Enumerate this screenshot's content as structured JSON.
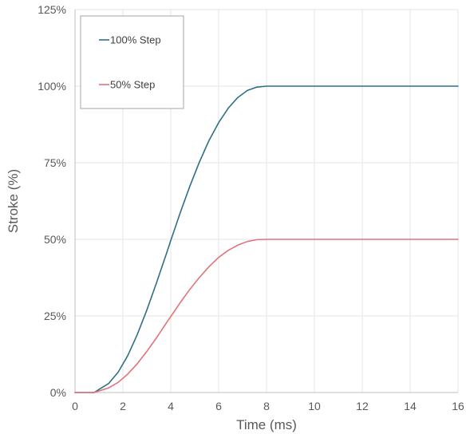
{
  "chart_data": {
    "type": "line",
    "title": "",
    "xlabel": "Time (ms)",
    "ylabel": "Stroke (%)",
    "xlim": [
      0,
      16
    ],
    "ylim": [
      0,
      125
    ],
    "x_ticks": [
      0,
      2,
      4,
      6,
      8,
      10,
      12,
      14,
      16
    ],
    "x_tick_labels": [
      "0",
      "2",
      "4",
      "6",
      "8",
      "10",
      "12",
      "14",
      "16"
    ],
    "y_ticks": [
      0,
      25,
      50,
      75,
      100,
      125
    ],
    "y_tick_labels": [
      "0%",
      "25%",
      "50%",
      "75%",
      "100%",
      "125%"
    ],
    "grid": true,
    "legend_position": "top-left",
    "series": [
      {
        "name": "100% Step",
        "color": "#2e6f86",
        "x": [
          0,
          0.4,
          0.8,
          1,
          1.4,
          1.8,
          2.2,
          2.6,
          3,
          3.4,
          3.8,
          4,
          4.4,
          4.8,
          5.2,
          5.6,
          6,
          6.4,
          6.8,
          7.2,
          7.6,
          8,
          9,
          10,
          12,
          14,
          16
        ],
        "y": [
          0,
          0,
          0,
          1,
          2.9,
          6.6,
          12,
          18.9,
          26.9,
          35.7,
          44.9,
          49.6,
          58.8,
          67.4,
          75.3,
          82.3,
          88.1,
          92.8,
          96.3,
          98.6,
          99.7,
          100,
          100,
          100,
          100,
          100,
          100
        ]
      },
      {
        "name": "50% Step",
        "color": "#e3727a",
        "x": [
          0,
          0.4,
          0.8,
          1,
          1.4,
          1.8,
          2.2,
          2.6,
          3,
          3.4,
          3.8,
          4,
          4.4,
          4.8,
          5.2,
          5.6,
          6,
          6.4,
          6.8,
          7.2,
          7.6,
          8,
          9,
          10,
          12,
          14,
          16
        ],
        "y": [
          0,
          0,
          0,
          0.5,
          1.5,
          3.3,
          6,
          9.4,
          13.4,
          17.8,
          22.5,
          24.8,
          29.4,
          33.7,
          37.6,
          41.1,
          44.1,
          46.4,
          48.1,
          49.3,
          49.9,
          50,
          50,
          50,
          50,
          50,
          50
        ]
      }
    ]
  }
}
